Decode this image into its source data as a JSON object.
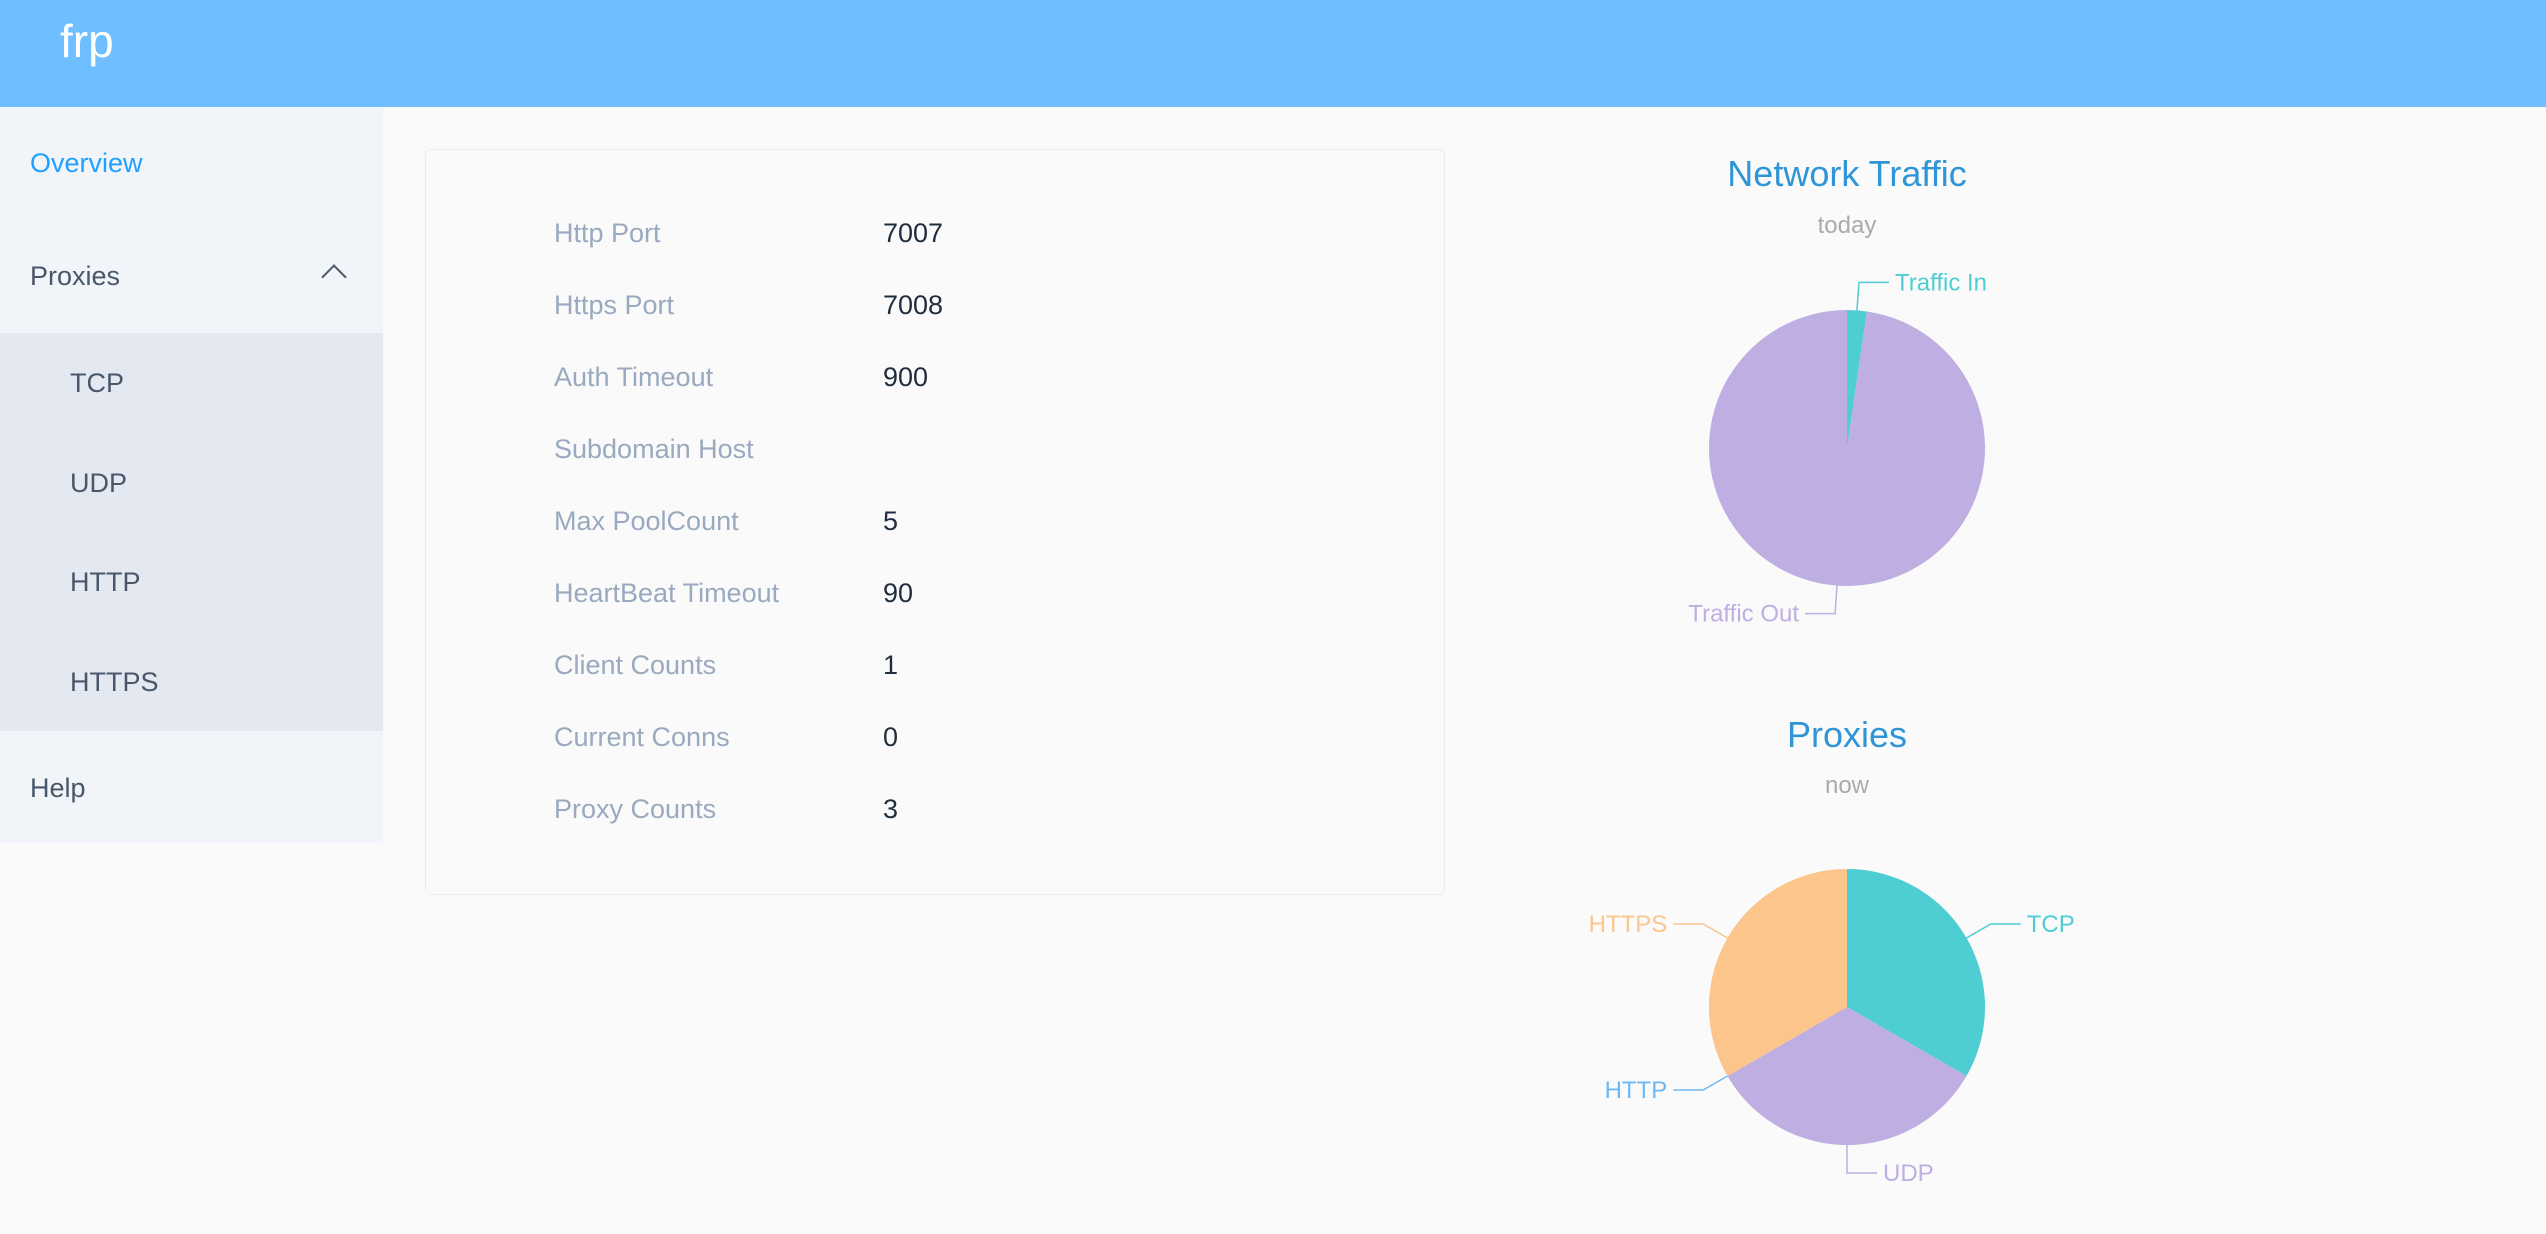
{
  "header": {
    "title": "frp",
    "color": "#6fbeff"
  },
  "sidebar": {
    "overview": "Overview",
    "proxies": "Proxies",
    "proxy_items": [
      "TCP",
      "UDP",
      "HTTP",
      "HTTPS"
    ],
    "help": "Help",
    "chevron_icon": "chevron-up-icon"
  },
  "server_info": [
    {
      "label": "Http Port",
      "value": "7007"
    },
    {
      "label": "Https Port",
      "value": "7008"
    },
    {
      "label": "Auth Timeout",
      "value": "900"
    },
    {
      "label": "Subdomain Host",
      "value": ""
    },
    {
      "label": "Max PoolCount",
      "value": "5"
    },
    {
      "label": "HeartBeat Timeout",
      "value": "90"
    },
    {
      "label": "Client Counts",
      "value": "1"
    },
    {
      "label": "Current Conns",
      "value": "0"
    },
    {
      "label": "Proxy Counts",
      "value": "3"
    }
  ],
  "chart_data": [
    {
      "type": "pie",
      "title": "Network Traffic",
      "subtitle": "today",
      "categories": [
        "Traffic In",
        "Traffic Out"
      ],
      "values": [
        2.3,
        97.7
      ],
      "colors": [
        "#4ecdd2",
        "#bfaee2"
      ]
    },
    {
      "type": "pie",
      "title": "Proxies",
      "subtitle": "now",
      "categories": [
        "TCP",
        "UDP",
        "HTTP",
        "HTTPS"
      ],
      "values": [
        1,
        1,
        0,
        1
      ],
      "colors": [
        "#4ecdd2",
        "#bfaee2",
        "#6cb8f5",
        "#fbc58b"
      ]
    }
  ]
}
